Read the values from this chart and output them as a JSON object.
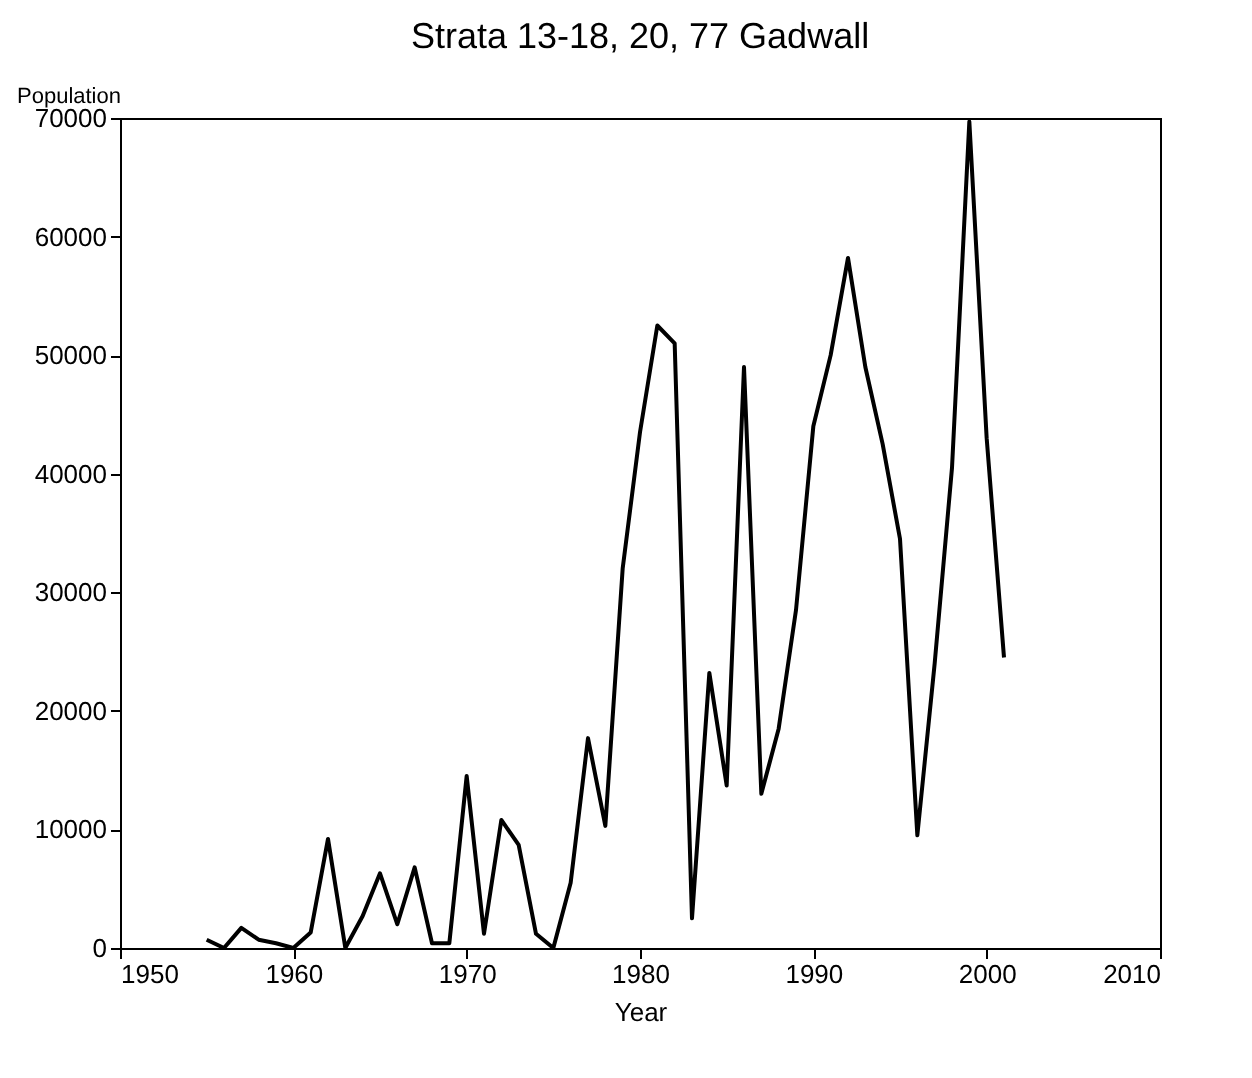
{
  "chart_data": {
    "type": "line",
    "title": "Strata 13-18, 20, 77   Gadwall",
    "xlabel": "Year",
    "ylabel": "Population",
    "x": [
      1955,
      1956,
      1957,
      1958,
      1959,
      1960,
      1961,
      1962,
      1963,
      1964,
      1965,
      1966,
      1967,
      1968,
      1969,
      1970,
      1971,
      1972,
      1973,
      1974,
      1975,
      1976,
      1977,
      1978,
      1979,
      1980,
      1981,
      1982,
      1983,
      1984,
      1985,
      1986,
      1987,
      1988,
      1989,
      1990,
      1991,
      1992,
      1993,
      1994,
      1995,
      1996,
      1997,
      1998,
      1999,
      2000,
      2001
    ],
    "series": [
      {
        "color": "#000000",
        "values": [
          700,
          0,
          1700,
          700,
          400,
          0,
          1300,
          9200,
          0,
          2700,
          6300,
          2000,
          6800,
          400,
          400,
          14500,
          1200,
          10800,
          8700,
          1200,
          0,
          5500,
          17700,
          10300,
          32000,
          43500,
          52500,
          51000,
          2500,
          23200,
          13700,
          49000,
          13000,
          18500,
          28500,
          44000,
          50000,
          58200,
          49000,
          42500,
          34500,
          9500,
          24000,
          40500,
          69700,
          43000,
          24500
        ]
      }
    ],
    "xlim": [
      1950,
      2010
    ],
    "xticks": [
      1950,
      1960,
      1970,
      1980,
      1990,
      2000,
      2010
    ],
    "ylim": [
      0,
      70000
    ],
    "yticks": [
      0,
      10000,
      20000,
      30000,
      40000,
      50000,
      60000,
      70000
    ],
    "grid": false,
    "legend": false,
    "marker": "none",
    "line_style": "solid"
  }
}
